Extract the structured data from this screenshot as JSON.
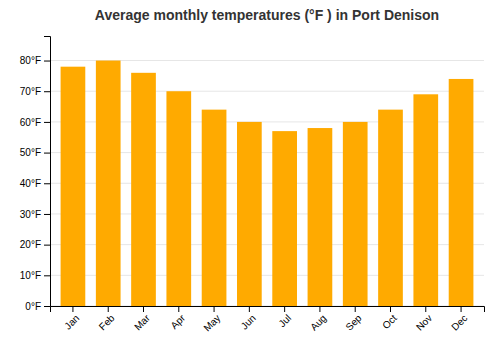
{
  "chart_data": {
    "type": "bar",
    "title": "Average monthly temperatures (°F ) in Port Denison",
    "categories": [
      "Jan",
      "Feb",
      "Mar",
      "Apr",
      "May",
      "Jun",
      "Jul",
      "Aug",
      "Sep",
      "Oct",
      "Nov",
      "Dec"
    ],
    "values": [
      78,
      80,
      76,
      70,
      64,
      60,
      57,
      58,
      60,
      64,
      69,
      74
    ],
    "color": "#FFAA00",
    "ylim": [
      0,
      88
    ],
    "yticks": [
      {
        "value": 0,
        "label": "0°F"
      },
      {
        "value": 10,
        "label": "10°F"
      },
      {
        "value": 20,
        "label": "20°F"
      },
      {
        "value": 30,
        "label": "30°F"
      },
      {
        "value": 40,
        "label": "40°F"
      },
      {
        "value": 50,
        "label": "50°F"
      },
      {
        "value": 60,
        "label": "60°F"
      },
      {
        "value": 70,
        "label": "70°F"
      },
      {
        "value": 80,
        "label": "80°F"
      }
    ],
    "grid": true
  }
}
